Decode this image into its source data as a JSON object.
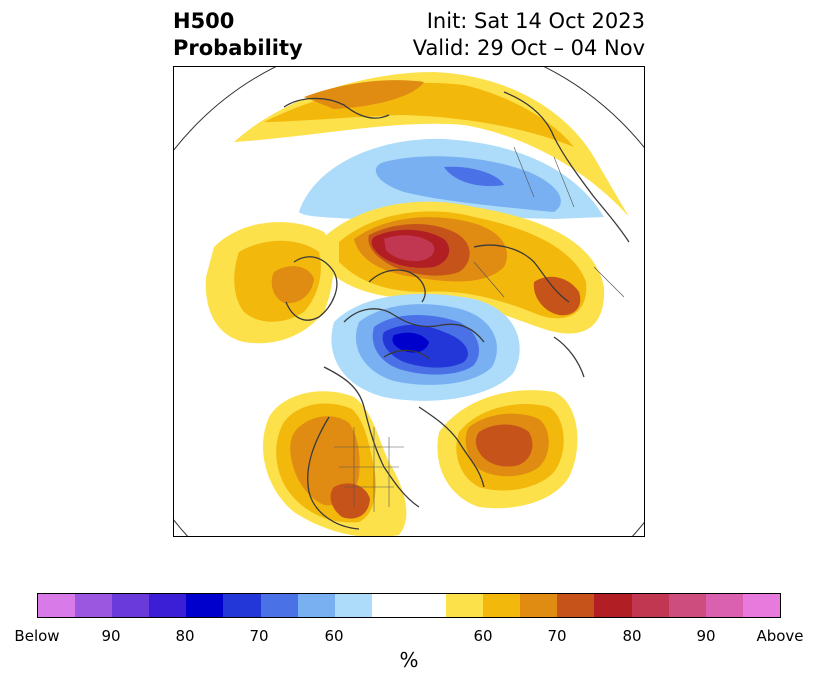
{
  "title": {
    "left_line1": "H500",
    "left_line2": "Probability",
    "right_line1": "Init: Sat 14 Oct 2023",
    "right_line2": "Valid: 29 Oct – 04 Nov"
  },
  "colors": {
    "below": [
      "#d87ae8",
      "#9b57e0",
      "#6a3ada",
      "#3b1fd6",
      "#0000cc",
      "#2337d9",
      "#4a72e6",
      "#79b0f2",
      "#acdcf9"
    ],
    "neutral": "#ffffff",
    "above": [
      "#fde14b",
      "#f3b80c",
      "#e08b12",
      "#c6541a",
      "#b11f24",
      "#c13650",
      "#cd4d7f",
      "#da61af",
      "#e97add"
    ]
  },
  "colorbar": {
    "ticks": [
      "Below",
      "90",
      "80",
      "70",
      "60",
      "60",
      "70",
      "80",
      "90",
      "Above"
    ],
    "unit": "%"
  }
}
